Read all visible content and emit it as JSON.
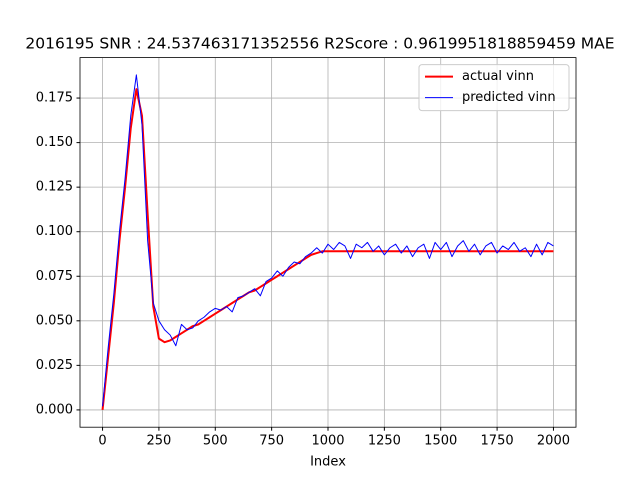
{
  "chart_data": {
    "type": "line",
    "title": "2016195  SNR : 24.537463171352556 R2Score : 0.9619951818859459 MAE",
    "xlabel": "Index",
    "x": [
      0,
      25,
      50,
      75,
      100,
      125,
      150,
      175,
      200,
      225,
      250,
      275,
      300,
      325,
      350,
      375,
      400,
      425,
      450,
      475,
      500,
      525,
      550,
      575,
      600,
      625,
      650,
      675,
      700,
      725,
      750,
      775,
      800,
      825,
      850,
      875,
      900,
      925,
      950,
      975,
      1000,
      1025,
      1050,
      1075,
      1100,
      1125,
      1150,
      1175,
      1200,
      1225,
      1250,
      1275,
      1300,
      1325,
      1350,
      1375,
      1400,
      1425,
      1450,
      1475,
      1500,
      1525,
      1550,
      1575,
      1600,
      1625,
      1650,
      1675,
      1700,
      1725,
      1750,
      1775,
      1800,
      1825,
      1850,
      1875,
      1900,
      1925,
      1950,
      1975,
      2000
    ],
    "series": [
      {
        "name": "actual vinn",
        "color": "#ff0000",
        "width": 2,
        "values": [
          0.0,
          0.03,
          0.06,
          0.095,
          0.125,
          0.158,
          0.18,
          0.165,
          0.11,
          0.058,
          0.04,
          0.038,
          0.039,
          0.041,
          0.043,
          0.045,
          0.047,
          0.048,
          0.05,
          0.052,
          0.054,
          0.056,
          0.058,
          0.06,
          0.062,
          0.064,
          0.066,
          0.067,
          0.069,
          0.071,
          0.073,
          0.075,
          0.077,
          0.079,
          0.081,
          0.083,
          0.085,
          0.087,
          0.088,
          0.089,
          0.089,
          0.089,
          0.089,
          0.089,
          0.089,
          0.089,
          0.089,
          0.089,
          0.089,
          0.089,
          0.089,
          0.089,
          0.089,
          0.089,
          0.089,
          0.089,
          0.089,
          0.089,
          0.089,
          0.089,
          0.089,
          0.089,
          0.089,
          0.089,
          0.089,
          0.089,
          0.089,
          0.089,
          0.089,
          0.089,
          0.089,
          0.089,
          0.089,
          0.089,
          0.089,
          0.089,
          0.089,
          0.089,
          0.089,
          0.089,
          0.089
        ]
      },
      {
        "name": "predicted vinn",
        "color": "#0000ff",
        "width": 1,
        "values": [
          0.002,
          0.035,
          0.065,
          0.1,
          0.13,
          0.165,
          0.188,
          0.16,
          0.095,
          0.06,
          0.05,
          0.045,
          0.042,
          0.036,
          0.048,
          0.045,
          0.046,
          0.05,
          0.052,
          0.055,
          0.057,
          0.056,
          0.058,
          0.055,
          0.063,
          0.064,
          0.066,
          0.068,
          0.064,
          0.072,
          0.074,
          0.078,
          0.075,
          0.08,
          0.083,
          0.082,
          0.086,
          0.088,
          0.091,
          0.088,
          0.093,
          0.09,
          0.094,
          0.092,
          0.085,
          0.093,
          0.091,
          0.094,
          0.089,
          0.092,
          0.087,
          0.091,
          0.093,
          0.088,
          0.092,
          0.086,
          0.091,
          0.093,
          0.085,
          0.094,
          0.09,
          0.094,
          0.086,
          0.092,
          0.095,
          0.089,
          0.093,
          0.087,
          0.092,
          0.094,
          0.088,
          0.092,
          0.09,
          0.094,
          0.089,
          0.091,
          0.086,
          0.093,
          0.087,
          0.094,
          0.092
        ]
      }
    ],
    "xlim": [
      -100,
      2100
    ],
    "xticks": [
      0,
      250,
      500,
      750,
      1000,
      1250,
      1500,
      1750,
      2000
    ],
    "ylim": [
      -0.0097,
      0.1977
    ],
    "yticks": [
      {
        "value": 0,
        "label": "0.000"
      },
      {
        "value": 0.025,
        "label": "0.025"
      },
      {
        "value": 0.05,
        "label": "0.050"
      },
      {
        "value": 0.075,
        "label": "0.075"
      },
      {
        "value": 0.1,
        "label": "0.100"
      },
      {
        "value": 0.125,
        "label": "0.125"
      },
      {
        "value": 0.15,
        "label": "0.150"
      },
      {
        "value": 0.175,
        "label": "0.175"
      }
    ],
    "grid": true,
    "legend": "upper right"
  }
}
